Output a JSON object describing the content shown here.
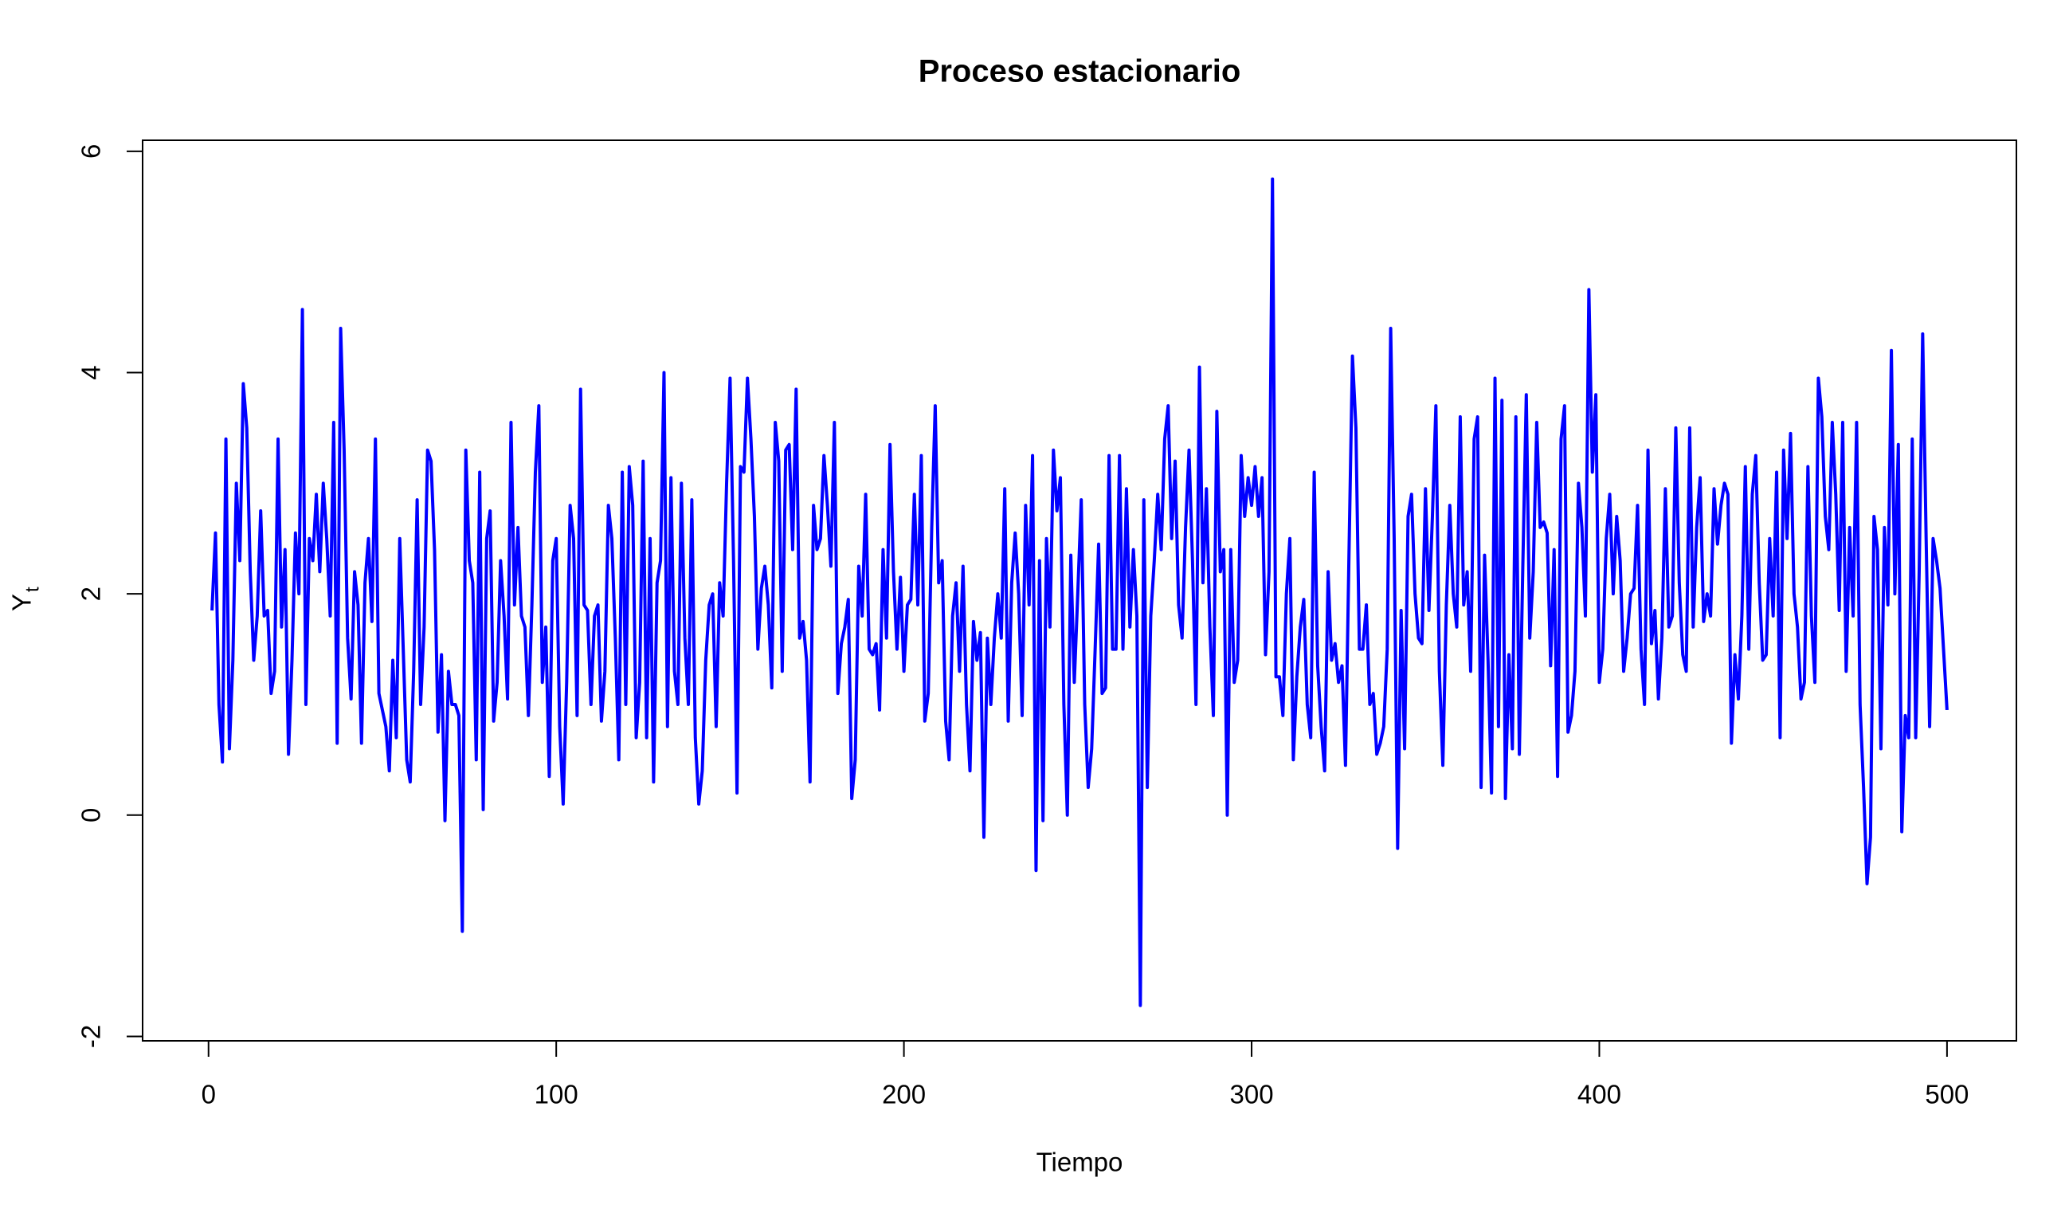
{
  "chart_data": {
    "type": "line",
    "title": "Proceso estacionario",
    "x_label": "Tiempo",
    "y_label": {
      "main": "Y",
      "sub": "t"
    },
    "color": "#0000ff",
    "xlim": [
      -18.96,
      519.96
    ],
    "ylim": [
      -2.04,
      6.1
    ],
    "xticks": [
      0,
      100,
      200,
      300,
      400,
      500
    ],
    "yticks": [
      -2,
      0,
      2,
      4,
      6
    ],
    "x": [
      1,
      2,
      3,
      4,
      5,
      6,
      7,
      8,
      9,
      10,
      11,
      12,
      13,
      14,
      15,
      16,
      17,
      18,
      19,
      20,
      21,
      22,
      23,
      24,
      25,
      26,
      27,
      28,
      29,
      30,
      31,
      32,
      33,
      34,
      35,
      36,
      37,
      38,
      39,
      40,
      41,
      42,
      43,
      44,
      45,
      46,
      47,
      48,
      49,
      50,
      51,
      52,
      53,
      54,
      55,
      56,
      57,
      58,
      59,
      60,
      61,
      62,
      63,
      64,
      65,
      66,
      67,
      68,
      69,
      70,
      71,
      72,
      73,
      74,
      75,
      76,
      77,
      78,
      79,
      80,
      81,
      82,
      83,
      84,
      85,
      86,
      87,
      88,
      89,
      90,
      91,
      92,
      93,
      94,
      95,
      96,
      97,
      98,
      99,
      100,
      101,
      102,
      103,
      104,
      105,
      106,
      107,
      108,
      109,
      110,
      111,
      112,
      113,
      114,
      115,
      116,
      117,
      118,
      119,
      120,
      121,
      122,
      123,
      124,
      125,
      126,
      127,
      128,
      129,
      130,
      131,
      132,
      133,
      134,
      135,
      136,
      137,
      138,
      139,
      140,
      141,
      142,
      143,
      144,
      145,
      146,
      147,
      148,
      149,
      150,
      151,
      152,
      153,
      154,
      155,
      156,
      157,
      158,
      159,
      160,
      161,
      162,
      163,
      164,
      165,
      166,
      167,
      168,
      169,
      170,
      171,
      172,
      173,
      174,
      175,
      176,
      177,
      178,
      179,
      180,
      181,
      182,
      183,
      184,
      185,
      186,
      187,
      188,
      189,
      190,
      191,
      192,
      193,
      194,
      195,
      196,
      197,
      198,
      199,
      200,
      201,
      202,
      203,
      204,
      205,
      206,
      207,
      208,
      209,
      210,
      211,
      212,
      213,
      214,
      215,
      216,
      217,
      218,
      219,
      220,
      221,
      222,
      223,
      224,
      225,
      226,
      227,
      228,
      229,
      230,
      231,
      232,
      233,
      234,
      235,
      236,
      237,
      238,
      239,
      240,
      241,
      242,
      243,
      244,
      245,
      246,
      247,
      248,
      249,
      250,
      251,
      252,
      253,
      254,
      255,
      256,
      257,
      258,
      259,
      260,
      261,
      262,
      263,
      264,
      265,
      266,
      267,
      268,
      269,
      270,
      271,
      272,
      273,
      274,
      275,
      276,
      277,
      278,
      279,
      280,
      281,
      282,
      283,
      284,
      285,
      286,
      287,
      288,
      289,
      290,
      291,
      292,
      293,
      294,
      295,
      296,
      297,
      298,
      299,
      300,
      301,
      302,
      303,
      304,
      305,
      306,
      307,
      308,
      309,
      310,
      311,
      312,
      313,
      314,
      315,
      316,
      317,
      318,
      319,
      320,
      321,
      322,
      323,
      324,
      325,
      326,
      327,
      328,
      329,
      330,
      331,
      332,
      333,
      334,
      335,
      336,
      337,
      338,
      339,
      340,
      341,
      342,
      343,
      344,
      345,
      346,
      347,
      348,
      349,
      350,
      351,
      352,
      353,
      354,
      355,
      356,
      357,
      358,
      359,
      360,
      361,
      362,
      363,
      364,
      365,
      366,
      367,
      368,
      369,
      370,
      371,
      372,
      373,
      374,
      375,
      376,
      377,
      378,
      379,
      380,
      381,
      382,
      383,
      384,
      385,
      386,
      387,
      388,
      389,
      390,
      391,
      392,
      393,
      394,
      395,
      396,
      397,
      398,
      399,
      400,
      401,
      402,
      403,
      404,
      405,
      406,
      407,
      408,
      409,
      410,
      411,
      412,
      413,
      414,
      415,
      416,
      417,
      418,
      419,
      420,
      421,
      422,
      423,
      424,
      425,
      426,
      427,
      428,
      429,
      430,
      431,
      432,
      433,
      434,
      435,
      436,
      437,
      438,
      439,
      440,
      441,
      442,
      443,
      444,
      445,
      446,
      447,
      448,
      449,
      450,
      451,
      452,
      453,
      454,
      455,
      456,
      457,
      458,
      459,
      460,
      461,
      462,
      463,
      464,
      465,
      466,
      467,
      468,
      469,
      470,
      471,
      472,
      473,
      474,
      475,
      476,
      477,
      478,
      479,
      480,
      481,
      482,
      483,
      484,
      485,
      486,
      487,
      488,
      489,
      490,
      491,
      492,
      493,
      494,
      495,
      496,
      497,
      498,
      499,
      500
    ],
    "values": [
      1.85,
      2.55,
      1.0,
      0.48,
      3.4,
      0.6,
      1.4,
      3.0,
      2.3,
      3.9,
      3.5,
      2.2,
      1.4,
      1.8,
      2.75,
      1.8,
      1.85,
      1.1,
      1.3,
      3.4,
      1.7,
      2.4,
      0.55,
      1.4,
      2.55,
      2.0,
      4.57,
      1.0,
      2.5,
      2.3,
      2.9,
      2.2,
      3.0,
      2.5,
      1.8,
      3.55,
      0.65,
      4.4,
      3.3,
      1.6,
      1.05,
      2.2,
      1.9,
      0.65,
      2.1,
      2.5,
      1.75,
      3.4,
      1.1,
      0.95,
      0.8,
      0.4,
      1.4,
      0.7,
      2.5,
      1.5,
      0.5,
      0.3,
      1.3,
      2.85,
      1.0,
      1.7,
      3.3,
      3.2,
      2.4,
      0.75,
      1.45,
      -0.05,
      1.3,
      1.0,
      1.0,
      0.9,
      -1.05,
      3.3,
      2.3,
      2.1,
      0.5,
      3.1,
      0.05,
      2.5,
      2.75,
      0.85,
      1.2,
      2.3,
      1.8,
      1.05,
      3.55,
      1.9,
      2.6,
      1.8,
      1.7,
      0.9,
      1.9,
      3.1,
      3.7,
      1.2,
      1.7,
      0.35,
      2.3,
      2.5,
      0.8,
      0.1,
      1.2,
      2.8,
      2.5,
      0.9,
      3.85,
      1.9,
      1.85,
      1.0,
      1.8,
      1.9,
      0.85,
      1.3,
      2.8,
      2.5,
      1.6,
      0.5,
      3.1,
      1.0,
      3.15,
      2.8,
      0.7,
      1.2,
      3.2,
      0.7,
      2.5,
      0.3,
      2.1,
      2.3,
      4.0,
      0.8,
      3.05,
      1.3,
      1.0,
      3.0,
      1.6,
      1.0,
      2.85,
      0.7,
      0.1,
      0.4,
      1.4,
      1.9,
      2.0,
      0.8,
      2.1,
      1.8,
      3.0,
      3.95,
      2.3,
      0.2,
      3.15,
      3.1,
      3.95,
      3.4,
      2.7,
      1.5,
      2.05,
      2.25,
      1.9,
      1.15,
      3.55,
      3.2,
      1.3,
      3.3,
      3.35,
      2.4,
      3.85,
      1.6,
      1.75,
      1.4,
      0.3,
      2.8,
      2.4,
      2.5,
      3.25,
      2.8,
      2.25,
      3.55,
      1.1,
      1.55,
      1.7,
      1.95,
      0.15,
      0.5,
      2.25,
      1.8,
      2.9,
      1.5,
      1.45,
      1.55,
      0.95,
      2.4,
      1.6,
      3.35,
      2.2,
      1.5,
      2.15,
      1.3,
      1.9,
      1.95,
      2.9,
      1.9,
      3.25,
      0.85,
      1.1,
      2.6,
      3.7,
      2.1,
      2.3,
      0.85,
      0.5,
      1.8,
      2.1,
      1.3,
      2.25,
      1.0,
      0.4,
      1.75,
      1.4,
      1.65,
      -0.2,
      1.6,
      1.0,
      1.6,
      2.0,
      1.6,
      2.95,
      0.85,
      2.1,
      2.55,
      2.0,
      0.9,
      2.8,
      1.9,
      3.25,
      -0.5,
      2.3,
      -0.05,
      2.5,
      1.7,
      3.3,
      2.75,
      3.05,
      1.0,
      0.0,
      2.35,
      1.2,
      2.0,
      2.85,
      1.0,
      0.25,
      0.6,
      1.5,
      2.45,
      1.1,
      1.15,
      3.25,
      1.5,
      1.5,
      3.25,
      1.5,
      2.95,
      1.7,
      2.4,
      1.8,
      -1.72,
      2.85,
      0.25,
      1.8,
      2.3,
      2.9,
      2.4,
      3.4,
      3.7,
      2.5,
      3.2,
      1.9,
      1.6,
      2.6,
      3.3,
      2.3,
      1.0,
      4.05,
      2.1,
      2.95,
      1.7,
      0.9,
      3.65,
      2.2,
      2.4,
      0.0,
      2.4,
      1.2,
      1.4,
      3.25,
      2.7,
      3.05,
      2.8,
      3.15,
      2.7,
      3.05,
      1.45,
      2.2,
      5.75,
      1.25,
      1.25,
      0.9,
      2.0,
      2.5,
      0.5,
      1.25,
      1.7,
      1.95,
      1.0,
      0.7,
      3.1,
      1.35,
      0.8,
      0.4,
      2.2,
      1.4,
      1.55,
      1.2,
      1.35,
      0.45,
      2.35,
      4.15,
      3.5,
      1.5,
      1.5,
      1.9,
      1.0,
      1.1,
      0.55,
      0.65,
      0.8,
      1.5,
      4.4,
      2.5,
      -0.3,
      1.85,
      0.6,
      2.7,
      2.9,
      2.0,
      1.6,
      1.55,
      2.95,
      1.85,
      2.7,
      3.7,
      1.3,
      0.45,
      1.9,
      2.8,
      2.0,
      1.7,
      3.6,
      1.9,
      2.2,
      1.3,
      3.4,
      3.6,
      0.25,
      2.35,
      1.4,
      0.2,
      3.95,
      0.8,
      3.75,
      0.15,
      1.45,
      0.6,
      3.6,
      0.55,
      2.25,
      3.8,
      1.6,
      2.2,
      3.55,
      2.6,
      2.65,
      2.55,
      1.35,
      2.4,
      0.35,
      3.4,
      3.7,
      0.75,
      0.9,
      1.3,
      3.0,
      2.6,
      1.8,
      4.75,
      3.1,
      3.8,
      1.2,
      1.5,
      2.5,
      2.9,
      2.0,
      2.7,
      2.3,
      1.3,
      1.6,
      2.0,
      2.05,
      2.8,
      1.5,
      1.0,
      3.3,
      1.55,
      1.85,
      1.05,
      1.6,
      2.95,
      1.7,
      1.8,
      3.5,
      2.1,
      1.45,
      1.3,
      3.5,
      1.7,
      2.6,
      3.05,
      1.75,
      2.0,
      1.8,
      2.95,
      2.45,
      2.8,
      3.0,
      2.9,
      0.65,
      1.45,
      1.05,
      1.8,
      3.15,
      1.5,
      2.9,
      3.25,
      2.1,
      1.4,
      1.45,
      2.5,
      1.8,
      3.1,
      0.7,
      3.3,
      2.5,
      3.45,
      2.0,
      1.7,
      1.05,
      1.2,
      3.15,
      1.8,
      1.2,
      3.95,
      3.6,
      2.7,
      2.4,
      3.55,
      2.9,
      1.85,
      3.55,
      1.3,
      2.6,
      1.8,
      3.55,
      1.0,
      0.25,
      -0.62,
      -0.2,
      2.7,
      2.4,
      0.6,
      2.6,
      1.9,
      4.2,
      2.0,
      3.35,
      -0.15,
      0.9,
      0.7,
      3.4,
      0.7,
      2.2,
      4.35,
      2.5,
      0.8,
      2.5,
      2.3,
      2.05,
      1.5,
      0.95
    ]
  }
}
